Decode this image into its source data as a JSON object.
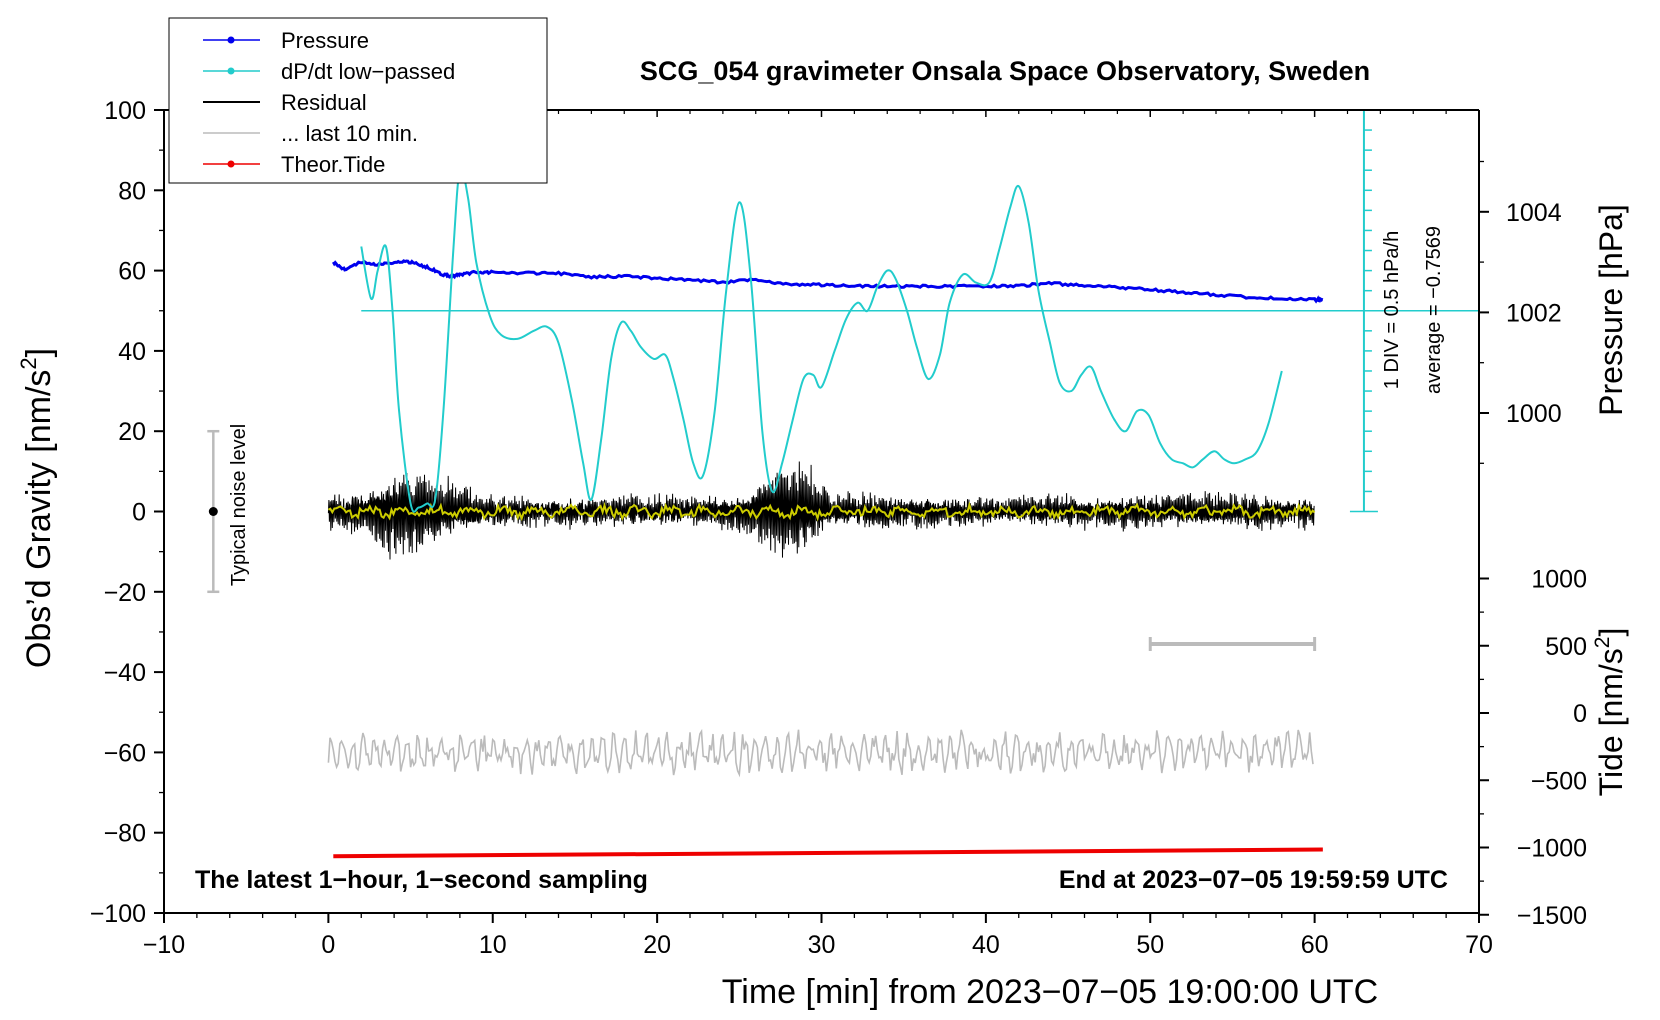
{
  "chart_data": {
    "type": "line",
    "title": "SCG_054 gravimeter Onsala Space Observatory, Sweden",
    "xlabel": "Time [min] from 2023−07−05 19:00:00 UTC",
    "ylabel_left_main": "Obs’d Gravity [nm/s",
    "ylabel_left_sup": "2",
    "ylabel_left_end": "]",
    "ylabel_right_pressure": "Pressure [hPa]",
    "ylabel_right_tide_main": "Tide [nm/s",
    "ylabel_right_tide_sup": "2",
    "ylabel_right_tide_end": "]",
    "xlim": [
      -10,
      70
    ],
    "ylim": [
      -100,
      100
    ],
    "pressure_lim": [
      998,
      1006
    ],
    "tide_lim": [
      -1500,
      1500
    ],
    "x_ticks": [
      -10,
      0,
      10,
      20,
      30,
      40,
      50,
      60,
      70
    ],
    "x_tick_labels": [
      "−10",
      "0",
      "10",
      "20",
      "30",
      "40",
      "50",
      "60",
      "70"
    ],
    "y_ticks": [
      -100,
      -80,
      -60,
      -40,
      -20,
      0,
      20,
      40,
      60,
      80,
      100
    ],
    "y_tick_labels": [
      "−100",
      "−80",
      "−60",
      "−40",
      "−20",
      "0",
      "20",
      "40",
      "60",
      "80",
      "100"
    ],
    "pressure_ticks": [
      1000,
      1002,
      1004
    ],
    "pressure_tick_labels": [
      "1000",
      "1002",
      "1004"
    ],
    "tide_ticks": [
      -1500,
      -1000,
      -500,
      0,
      500,
      1000
    ],
    "tide_tick_labels": [
      "−1500",
      "−1000",
      "−500",
      "0",
      "500",
      "1000"
    ],
    "legend": [
      {
        "label": "Pressure",
        "color": "#0000ee",
        "marker": true
      },
      {
        "label": "dP/dt low−passed",
        "color": "#22cccc",
        "marker": true
      },
      {
        "label": "Residual",
        "color": "#000000",
        "marker": false
      },
      {
        "label": "... last 10 min.",
        "color": "#bbbbbb",
        "marker": false
      },
      {
        "label": "Theor.Tide",
        "color": "#ee0000",
        "marker": true
      }
    ],
    "annotations": {
      "bottom_left": "The latest 1−hour, 1−second sampling",
      "bottom_right": "End at 2023−07−05 19:59:59 UTC",
      "noise_label": "Typical noise level",
      "div_label": "1 DIV = 0.5 hPa/h",
      "average_label": "average = −0.7569"
    },
    "noise_bar": {
      "x": -7,
      "center": 0,
      "range": [
        -20,
        20
      ]
    },
    "ten_min_bar": {
      "x_range": [
        50,
        60
      ],
      "y": -33
    },
    "dpdt_scale": {
      "x": 63,
      "zero_y": 50,
      "y_range": [
        0,
        100
      ],
      "divisions": 20,
      "units_per_div": 0.5
    },
    "series": [
      {
        "name": "Pressure",
        "color": "#0000ee",
        "axis": "pressure_hPa",
        "x": [
          0.3,
          1,
          2,
          3,
          4,
          5,
          6,
          7,
          7.5,
          8,
          9,
          10,
          12,
          14,
          16,
          18,
          20,
          22,
          24,
          26,
          28,
          30,
          32,
          34,
          36,
          38,
          40,
          42,
          44,
          46,
          48,
          50,
          52,
          54,
          56,
          58,
          60,
          60.5
        ],
        "values": [
          1003.0,
          1002.85,
          1003.0,
          1002.95,
          1003.0,
          1003.0,
          1002.9,
          1002.75,
          1002.72,
          1002.75,
          1002.8,
          1002.8,
          1002.78,
          1002.78,
          1002.7,
          1002.72,
          1002.68,
          1002.65,
          1002.6,
          1002.65,
          1002.55,
          1002.55,
          1002.52,
          1002.52,
          1002.52,
          1002.52,
          1002.52,
          1002.53,
          1002.58,
          1002.53,
          1002.5,
          1002.45,
          1002.4,
          1002.35,
          1002.3,
          1002.28,
          1002.25,
          1002.25
        ]
      },
      {
        "name": "dP/dt low-passed",
        "color": "#22cccc",
        "axis": "gravity_units",
        "x": [
          2.0,
          2.6,
          3.0,
          3.5,
          3.9,
          4.3,
          5.0,
          5.5,
          6.0,
          6.5,
          7.0,
          7.6,
          8.0,
          8.5,
          9.0,
          9.8,
          10.5,
          11.5,
          12.5,
          13.3,
          14.0,
          14.8,
          15.5,
          16.0,
          16.6,
          17.2,
          17.8,
          18.4,
          19.0,
          19.8,
          20.5,
          21.0,
          21.6,
          22.2,
          22.8,
          23.5,
          24.2,
          25.0,
          25.7,
          26.4,
          27.0,
          27.6,
          28.2,
          28.9,
          29.5,
          30.0,
          30.8,
          31.5,
          32.2,
          32.8,
          33.4,
          34.0,
          34.5,
          35.2,
          35.8,
          36.5,
          37.2,
          37.8,
          38.6,
          39.4,
          40.2,
          40.8,
          41.5,
          42.0,
          42.6,
          43.2,
          43.9,
          44.5,
          45.2,
          45.8,
          46.4,
          47.0,
          47.8,
          48.5,
          49.2,
          49.9,
          50.6,
          51.3,
          52.0,
          52.6,
          53.2,
          53.9,
          54.5,
          55.1,
          55.8,
          56.5,
          57.2,
          58.0
        ],
        "values": [
          66,
          53,
          60,
          66,
          50,
          25,
          2,
          1,
          2,
          3,
          25,
          65,
          85,
          78,
          62,
          49,
          44,
          43,
          45,
          46,
          42,
          28,
          12,
          3,
          18,
          38,
          47,
          45,
          41,
          38,
          39,
          33,
          23,
          12,
          9,
          25,
          55,
          77,
          58,
          20,
          5,
          12,
          22,
          33,
          34,
          31,
          40,
          48,
          52,
          50,
          56,
          60,
          58,
          50,
          41,
          33,
          39,
          52,
          59,
          57,
          57,
          65,
          76,
          81,
          72,
          55,
          42,
          32,
          30,
          34,
          36,
          30,
          23,
          20,
          25,
          24,
          17,
          13,
          12,
          11,
          13,
          15,
          13,
          12,
          13,
          15,
          22,
          35
        ]
      },
      {
        "name": "Residual",
        "color": "#000000",
        "axis": "gravity",
        "x_range": [
          0,
          60
        ],
        "envelope": [
          {
            "x": 0,
            "amp": 5
          },
          {
            "x": 2,
            "amp": 6
          },
          {
            "x": 3.5,
            "amp": 11
          },
          {
            "x": 4.5,
            "amp": 13
          },
          {
            "x": 6,
            "amp": 10
          },
          {
            "x": 7.5,
            "amp": 8
          },
          {
            "x": 10,
            "amp": 4
          },
          {
            "x": 18,
            "amp": 4
          },
          {
            "x": 24,
            "amp": 4
          },
          {
            "x": 26,
            "amp": 8
          },
          {
            "x": 27.5,
            "amp": 14
          },
          {
            "x": 29,
            "amp": 14
          },
          {
            "x": 30.5,
            "amp": 5
          },
          {
            "x": 40,
            "amp": 4
          },
          {
            "x": 52,
            "amp": 5
          },
          {
            "x": 60,
            "amp": 4
          }
        ]
      },
      {
        "name": "Residual smoothed",
        "color": "#cccc00",
        "axis": "gravity",
        "x_range": [
          0,
          60
        ],
        "values_about": 0
      },
      {
        "name": "... last 10 min.",
        "color": "#bbbbbb",
        "axis": "gravity",
        "x_range": [
          0,
          60
        ],
        "baseline": -60,
        "amplitude": 5
      },
      {
        "name": "Theor.Tide",
        "color": "#ee0000",
        "axis": "tide_nm_s2",
        "x": [
          0.3,
          60.5
        ],
        "values": [
          -1065,
          -1015
        ]
      }
    ]
  }
}
